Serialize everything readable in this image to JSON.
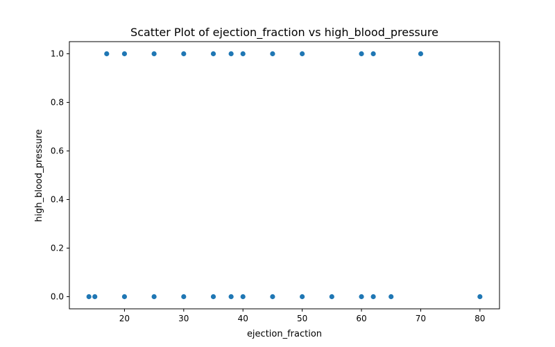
{
  "chart_data": {
    "type": "scatter",
    "title": "Scatter Plot of ejection_fraction vs high_blood_pressure",
    "xlabel": "ejection_fraction",
    "ylabel": "high_blood_pressure",
    "xlim": [
      10.7,
      83.3
    ],
    "ylim": [
      -0.05,
      1.05
    ],
    "xticks": [
      20,
      30,
      40,
      50,
      60,
      70,
      80
    ],
    "xtick_labels": [
      "20",
      "30",
      "40",
      "50",
      "60",
      "70",
      "80"
    ],
    "yticks": [
      0.0,
      0.2,
      0.4,
      0.6,
      0.8,
      1.0
    ],
    "ytick_labels": [
      "0.0",
      "0.2",
      "0.4",
      "0.6",
      "0.8",
      "1.0"
    ],
    "grid": false,
    "marker_color": "#1f77b4",
    "points": [
      {
        "x": 17,
        "y": 1
      },
      {
        "x": 20,
        "y": 1
      },
      {
        "x": 25,
        "y": 1
      },
      {
        "x": 30,
        "y": 1
      },
      {
        "x": 35,
        "y": 1
      },
      {
        "x": 38,
        "y": 1
      },
      {
        "x": 40,
        "y": 1
      },
      {
        "x": 45,
        "y": 1
      },
      {
        "x": 50,
        "y": 1
      },
      {
        "x": 60,
        "y": 1
      },
      {
        "x": 62,
        "y": 1
      },
      {
        "x": 70,
        "y": 1
      },
      {
        "x": 14,
        "y": 0
      },
      {
        "x": 15,
        "y": 0
      },
      {
        "x": 20,
        "y": 0
      },
      {
        "x": 25,
        "y": 0
      },
      {
        "x": 30,
        "y": 0
      },
      {
        "x": 35,
        "y": 0
      },
      {
        "x": 38,
        "y": 0
      },
      {
        "x": 40,
        "y": 0
      },
      {
        "x": 45,
        "y": 0
      },
      {
        "x": 50,
        "y": 0
      },
      {
        "x": 55,
        "y": 0
      },
      {
        "x": 60,
        "y": 0
      },
      {
        "x": 62,
        "y": 0
      },
      {
        "x": 65,
        "y": 0
      },
      {
        "x": 80,
        "y": 0
      }
    ]
  }
}
